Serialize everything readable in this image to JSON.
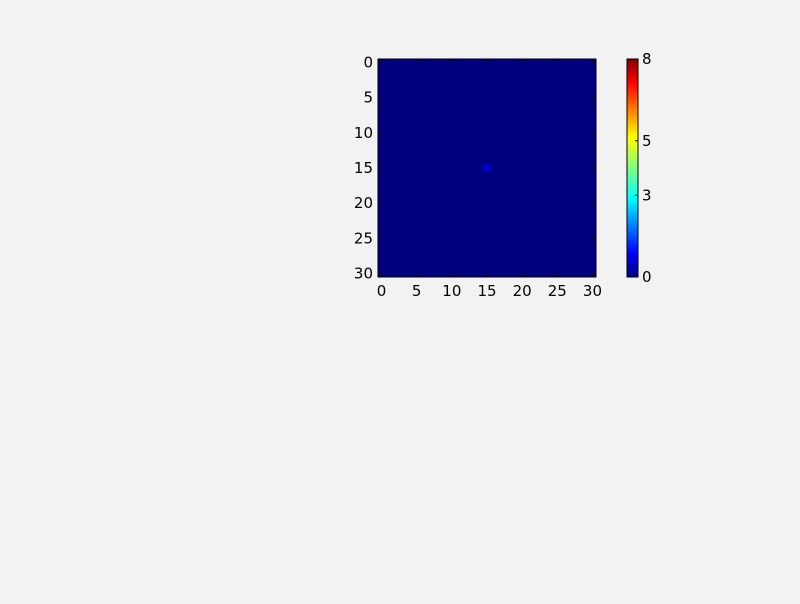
{
  "chart_data": {
    "type": "heatmap",
    "title": "",
    "xlabel": "",
    "ylabel": "",
    "grid_size": [
      31,
      31
    ],
    "x_range": [
      0,
      30
    ],
    "y_range": [
      0,
      30
    ],
    "y_inverted": true,
    "xticks": [
      "0",
      "5",
      "10",
      "15",
      "20",
      "25",
      "30"
    ],
    "yticks": [
      "0",
      "5",
      "10",
      "15",
      "20",
      "25",
      "30"
    ],
    "background_value": 0,
    "nonzero_cells": [
      {
        "x": 15,
        "y": 15,
        "value": 0.6
      }
    ],
    "colormap": "jet",
    "colorbar": {
      "range": [
        0,
        8
      ],
      "ticks": [
        "0",
        "3",
        "5",
        "8"
      ]
    },
    "grid": false
  },
  "colors": {
    "page_background": "#f2f2f2",
    "cell_background": "#00007f",
    "spot": "#0000d6"
  }
}
